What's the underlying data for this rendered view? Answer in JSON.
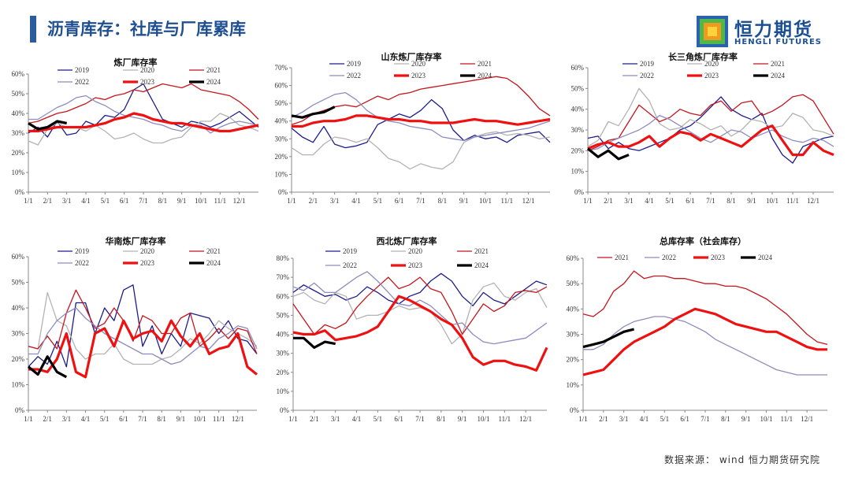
{
  "header": {
    "title": "沥青库存：社库与厂库累库"
  },
  "logo": {
    "name_cn": "恒力期货",
    "name_en": "HENGLI FUTURES"
  },
  "footer": {
    "source": "数据来源：  wind  恒力期货研究院"
  },
  "colors": {
    "2019": "#1c1c8c",
    "2020": "#b3b3b3",
    "2021": "#c4161c",
    "2022": "#8c8cbf",
    "2023": "#ee1111",
    "2024": "#000000"
  },
  "chart_data": [
    {
      "type": "line",
      "title": "炼厂库存率",
      "x_ticks": [
        "1/1",
        "2/1",
        "3/1",
        "4/1",
        "5/1",
        "6/1",
        "7/1",
        "8/1",
        "9/1",
        "10/1",
        "11/1",
        "12/1"
      ],
      "y_ticks": [
        "0%",
        "10%",
        "20%",
        "30%",
        "40%",
        "50%",
        "60%"
      ],
      "ylim": [
        0,
        60
      ],
      "legend": [
        "2019",
        "2020",
        "2021",
        "2022",
        "2023",
        "2024"
      ],
      "series": [
        {
          "name": "2019",
          "values": [
            30,
            33,
            28,
            36,
            29,
            30,
            36,
            34,
            39,
            38,
            42,
            52,
            55,
            46,
            37,
            35,
            33,
            36,
            35,
            33,
            35,
            38,
            41,
            37,
            33
          ]
        },
        {
          "name": "2020",
          "values": [
            26,
            24,
            32,
            35,
            33,
            33,
            31,
            34,
            31,
            27,
            28,
            30,
            27,
            25,
            25,
            27,
            28,
            33,
            36,
            36,
            40,
            38,
            34,
            33,
            31
          ]
        },
        {
          "name": "2021",
          "values": [
            35,
            36,
            38,
            40,
            41,
            43,
            45,
            48,
            47,
            49,
            50,
            52,
            51,
            53,
            55,
            54,
            53,
            55,
            52,
            51,
            50,
            49,
            46,
            42,
            37
          ]
        },
        {
          "name": "2022",
          "values": [
            37,
            37,
            40,
            43,
            45,
            48,
            49,
            46,
            44,
            41,
            39,
            38,
            37,
            35,
            34,
            32,
            31,
            34,
            34,
            30,
            33,
            35,
            36,
            35,
            34
          ]
        },
        {
          "name": "2023",
          "values": [
            31,
            31,
            32,
            33,
            33,
            33,
            33,
            34,
            35,
            37,
            38,
            40,
            39,
            37,
            36,
            35,
            35,
            34,
            33,
            32,
            31,
            31,
            32,
            33,
            34
          ]
        },
        {
          "name": "2024",
          "values": [
            35,
            32,
            33,
            36,
            35
          ]
        }
      ]
    },
    {
      "type": "line",
      "title": "山东炼厂库存率",
      "x_ticks": [
        "1/1",
        "2/1",
        "3/1",
        "4/1",
        "5/1",
        "6/1",
        "7/1",
        "8/1",
        "9/1",
        "10/1",
        "11/1",
        "12/1"
      ],
      "y_ticks": [
        "0%",
        "10%",
        "20%",
        "30%",
        "40%",
        "50%",
        "60%",
        "70%"
      ],
      "ylim": [
        0,
        70
      ],
      "legend": [
        "2019",
        "2020",
        "2021",
        "2022",
        "2023",
        "2024"
      ],
      "series": [
        {
          "name": "2019",
          "values": [
            36,
            31,
            28,
            37,
            27,
            25,
            26,
            28,
            38,
            41,
            44,
            42,
            46,
            52,
            47,
            35,
            29,
            32,
            30,
            31,
            28,
            32,
            33,
            34,
            28
          ]
        },
        {
          "name": "2020",
          "values": [
            25,
            21,
            21,
            27,
            31,
            30,
            28,
            30,
            25,
            19,
            17,
            13,
            16,
            14,
            13,
            17,
            28,
            31,
            33,
            34,
            32,
            33,
            32,
            30,
            31
          ]
        },
        {
          "name": "2021",
          "values": [
            38,
            40,
            44,
            46,
            48,
            49,
            48,
            51,
            54,
            52,
            55,
            56,
            58,
            59,
            60,
            61,
            62,
            63,
            64,
            65,
            64,
            60,
            54,
            47,
            43
          ]
        },
        {
          "name": "2022",
          "values": [
            42,
            45,
            49,
            52,
            55,
            56,
            52,
            46,
            42,
            40,
            39,
            37,
            36,
            35,
            31,
            30,
            29,
            31,
            32,
            33,
            34,
            35,
            36,
            38,
            40
          ]
        },
        {
          "name": "2023",
          "values": [
            37,
            37,
            39,
            40,
            40,
            41,
            43,
            43,
            42,
            41,
            41,
            40,
            40,
            39,
            39,
            39,
            40,
            41,
            40,
            40,
            39,
            38,
            39,
            40,
            41
          ]
        },
        {
          "name": "2024",
          "values": [
            43,
            42,
            44,
            45,
            48
          ]
        }
      ]
    },
    {
      "type": "line",
      "title": "长三角炼厂库存率",
      "x_ticks": [
        "1/1",
        "2/1",
        "3/1",
        "4/1",
        "5/1",
        "6/1",
        "7/1",
        "8/1",
        "9/1",
        "10/1",
        "11/1",
        "12/1"
      ],
      "y_ticks": [
        "0%",
        "10%",
        "20%",
        "30%",
        "40%",
        "50%",
        "60%"
      ],
      "ylim": [
        0,
        60
      ],
      "legend": [
        "2019",
        "2020",
        "2021",
        "2022",
        "2023",
        "2024"
      ],
      "series": [
        {
          "name": "2019",
          "values": [
            26,
            27,
            21,
            24,
            21,
            20,
            22,
            24,
            26,
            30,
            32,
            36,
            41,
            46,
            40,
            37,
            35,
            38,
            26,
            18,
            14,
            22,
            24,
            26,
            27
          ]
        },
        {
          "name": "2020",
          "values": [
            22,
            25,
            34,
            32,
            40,
            50,
            44,
            33,
            30,
            31,
            35,
            33,
            30,
            32,
            27,
            30,
            35,
            34,
            31,
            32,
            38,
            36,
            30,
            29,
            27
          ]
        },
        {
          "name": "2021",
          "values": [
            20,
            22,
            25,
            26,
            34,
            42,
            38,
            34,
            36,
            40,
            38,
            37,
            42,
            44,
            39,
            43,
            44,
            37,
            39,
            42,
            46,
            47,
            44,
            36,
            28
          ]
        },
        {
          "name": "2022",
          "values": [
            20,
            21,
            24,
            26,
            28,
            30,
            33,
            37,
            35,
            32,
            29,
            26,
            24,
            27,
            30,
            29,
            26,
            28,
            30,
            27,
            25,
            24,
            26,
            25,
            22
          ]
        },
        {
          "name": "2023",
          "values": [
            21,
            23,
            24,
            22,
            22,
            24,
            27,
            22,
            26,
            29,
            28,
            25,
            28,
            26,
            24,
            22,
            26,
            30,
            32,
            25,
            18,
            18,
            24,
            20,
            18
          ]
        },
        {
          "name": "2024",
          "values": [
            21,
            17,
            20,
            16,
            18
          ]
        }
      ]
    },
    {
      "type": "line",
      "title": "华南炼厂库存率",
      "x_ticks": [
        "1/1",
        "2/1",
        "3/1",
        "4/1",
        "5/1",
        "6/1",
        "7/1",
        "8/1",
        "9/1",
        "10/1",
        "11/1",
        "12/1"
      ],
      "y_ticks": [
        "0%",
        "10%",
        "20%",
        "30%",
        "40%",
        "50%",
        "60%"
      ],
      "ylim": [
        0,
        60
      ],
      "legend": [
        "2019",
        "2020",
        "2021",
        "2022",
        "2023",
        "2024"
      ],
      "series": [
        {
          "name": "2019",
          "values": [
            17,
            21,
            18,
            27,
            17,
            42,
            42,
            30,
            40,
            35,
            47,
            49,
            25,
            33,
            22,
            30,
            25,
            38,
            37,
            36,
            30,
            35,
            28,
            27,
            22
          ]
        },
        {
          "name": "2020",
          "values": [
            25,
            24,
            46,
            35,
            33,
            24,
            20,
            22,
            22,
            26,
            20,
            18,
            18,
            18,
            20,
            21,
            24,
            28,
            26,
            30,
            35,
            32,
            30,
            28,
            25
          ]
        },
        {
          "name": "2021",
          "values": [
            25,
            24,
            29,
            24,
            38,
            47,
            40,
            32,
            34,
            40,
            35,
            27,
            37,
            35,
            30,
            30,
            36,
            38,
            25,
            28,
            32,
            28,
            32,
            31,
            22
          ]
        },
        {
          "name": "2022",
          "values": [
            22,
            22,
            30,
            35,
            38,
            40,
            36,
            33,
            30,
            28,
            26,
            24,
            22,
            22,
            20,
            18,
            19,
            22,
            25,
            24,
            28,
            30,
            33,
            32,
            24
          ]
        },
        {
          "name": "2023",
          "values": [
            16,
            16,
            15,
            20,
            30,
            15,
            13,
            30,
            32,
            25,
            35,
            28,
            30,
            31,
            27,
            35,
            29,
            25,
            30,
            22,
            24,
            25,
            30,
            17,
            14
          ]
        },
        {
          "name": "2024",
          "values": [
            17,
            14,
            21,
            15,
            13
          ]
        }
      ]
    },
    {
      "type": "line",
      "title": "西北炼厂库存率",
      "x_ticks": [
        "1/1",
        "2/1",
        "3/1",
        "4/1",
        "5/1",
        "6/1",
        "7/1",
        "8/1",
        "9/1",
        "10/1",
        "11/1",
        "12/1"
      ],
      "y_ticks": [
        "0%",
        "10%",
        "20%",
        "30%",
        "40%",
        "50%",
        "60%",
        "70%",
        "80%"
      ],
      "ylim": [
        0,
        80
      ],
      "legend": [
        "2019",
        "2020",
        "2021",
        "2022",
        "2023",
        "2024"
      ],
      "series": [
        {
          "name": "2019",
          "values": [
            62,
            66,
            63,
            60,
            61,
            58,
            60,
            65,
            62,
            58,
            56,
            60,
            62,
            68,
            72,
            68,
            60,
            55,
            62,
            58,
            56,
            60,
            64,
            68,
            66
          ]
        },
        {
          "name": "2020",
          "values": [
            60,
            62,
            58,
            56,
            62,
            60,
            48,
            50,
            50,
            52,
            55,
            53,
            54,
            52,
            45,
            35,
            40,
            58,
            65,
            67,
            60,
            58,
            62,
            64,
            54
          ]
        },
        {
          "name": "2021",
          "values": [
            56,
            48,
            40,
            45,
            43,
            46,
            54,
            60,
            65,
            70,
            64,
            66,
            70,
            64,
            62,
            52,
            40,
            48,
            56,
            52,
            55,
            62,
            63,
            62,
            65
          ]
        },
        {
          "name": "2022",
          "values": [
            65,
            63,
            67,
            62,
            62,
            66,
            70,
            73,
            68,
            62,
            56,
            55,
            58,
            55,
            50,
            45,
            46,
            40,
            36,
            35,
            36,
            37,
            38,
            42,
            46
          ]
        },
        {
          "name": "2023",
          "values": [
            41,
            40,
            40,
            42,
            37,
            38,
            39,
            41,
            44,
            52,
            60,
            58,
            55,
            52,
            48,
            45,
            38,
            28,
            24,
            26,
            26,
            24,
            23,
            21,
            33
          ]
        },
        {
          "name": "2024",
          "values": [
            38,
            38,
            33,
            36,
            35
          ]
        }
      ]
    },
    {
      "type": "line",
      "title": "总库存率（社会库存）",
      "x_ticks": [
        "1/1",
        "2/1",
        "3/1",
        "4/1",
        "5/1",
        "6/1",
        "7/1",
        "8/1",
        "9/1",
        "10/1",
        "11/1",
        "12/1"
      ],
      "y_ticks": [
        "0%",
        "10%",
        "20%",
        "30%",
        "40%",
        "50%",
        "60%"
      ],
      "ylim": [
        0,
        60
      ],
      "legend": [
        "2021",
        "2022",
        "2023",
        "2024"
      ],
      "series": [
        {
          "name": "2021",
          "values": [
            38,
            37,
            40,
            47,
            50,
            55,
            52,
            53,
            53,
            52,
            52,
            51,
            50,
            50,
            49,
            49,
            48,
            46,
            44,
            41,
            38,
            34,
            30,
            27,
            26
          ]
        },
        {
          "name": "2022",
          "values": [
            24,
            24,
            26,
            30,
            33,
            35,
            36,
            37,
            37,
            36,
            35,
            33,
            31,
            28,
            26,
            24,
            22,
            20,
            18,
            16,
            15,
            14,
            14,
            14,
            14
          ]
        },
        {
          "name": "2023",
          "values": [
            14,
            15,
            16,
            20,
            24,
            27,
            29,
            31,
            33,
            36,
            38,
            40,
            39,
            38,
            36,
            34,
            33,
            32,
            31,
            31,
            29,
            27,
            25,
            24,
            24
          ]
        },
        {
          "name": "2024",
          "values": [
            25,
            26,
            27,
            29,
            31,
            32
          ]
        }
      ]
    }
  ]
}
